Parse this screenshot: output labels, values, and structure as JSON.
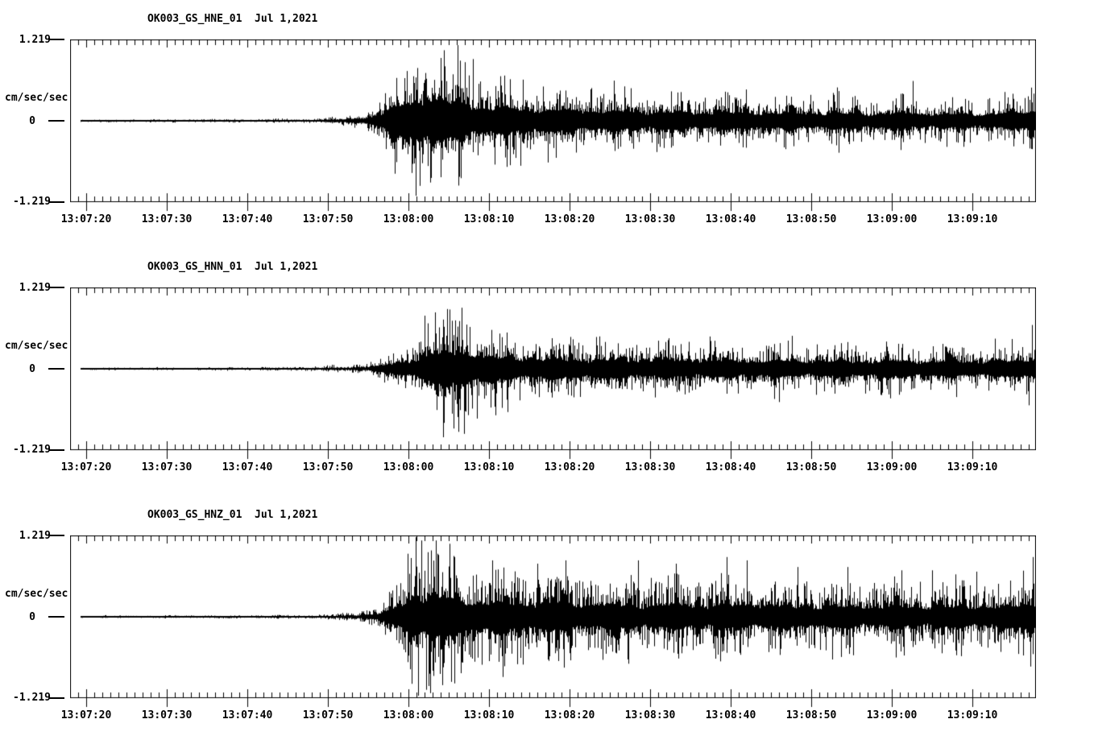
{
  "figure": {
    "background_color": "#ffffff",
    "foreground_color": "#000000"
  },
  "chart_data": {
    "type": "line",
    "subtype": "seismogram-min-max-trace",
    "date": "Jul 1,2021",
    "station": "OK003",
    "network": "GS",
    "x_axis": {
      "start_time": "13:07:18",
      "end_time": "13:09:18",
      "major_tick_interval_s": 10,
      "minor_tick_interval_s": 1,
      "first_major_tick_offset_s": 2,
      "tick_labels": [
        "13:07:20",
        "13:07:30",
        "13:07:40",
        "13:07:50",
        "13:08:00",
        "13:08:10",
        "13:08:20",
        "13:08:30",
        "13:08:40",
        "13:08:50",
        "13:09:00",
        "13:09:10"
      ]
    },
    "y_axis": {
      "label": "cm/sec/sec",
      "max": 1.219,
      "min": -1.219,
      "tick_labels": [
        "1.219",
        "0",
        "-1.219"
      ]
    },
    "panels": [
      {
        "title": "OK003_GS_HNE_01  Jul 1,2021",
        "channel": "HNE",
        "seed": 11,
        "spikiness": 0.18,
        "trace_start_s": 1.3,
        "envelope": [
          [
            1.3,
            0.018
          ],
          [
            20,
            0.022
          ],
          [
            28,
            0.028
          ],
          [
            32,
            0.04
          ],
          [
            34,
            0.06
          ],
          [
            36,
            0.1
          ],
          [
            37.5,
            0.18
          ],
          [
            39,
            0.35
          ],
          [
            40.5,
            0.6
          ],
          [
            42,
            0.85
          ],
          [
            43.5,
            0.95
          ],
          [
            45,
            0.9
          ],
          [
            47,
            0.82
          ],
          [
            49,
            0.72
          ],
          [
            51,
            0.62
          ],
          [
            53,
            0.56
          ],
          [
            56,
            0.52
          ],
          [
            60,
            0.47
          ],
          [
            65,
            0.43
          ],
          [
            70,
            0.4
          ],
          [
            78,
            0.37
          ],
          [
            86,
            0.35
          ],
          [
            95,
            0.33
          ],
          [
            105,
            0.31
          ],
          [
            112,
            0.3
          ],
          [
            117,
            0.33
          ],
          [
            119.9,
            0.45
          ]
        ],
        "spikes": [
          [
            41.8,
            0.75
          ],
          [
            42.9,
            -1.13
          ],
          [
            43.4,
            -0.98
          ],
          [
            44.1,
            0.72
          ],
          [
            44.7,
            -0.93
          ],
          [
            46.0,
            -0.85
          ],
          [
            47.5,
            0.7
          ],
          [
            50.0,
            0.93
          ],
          [
            56.2,
            0.62
          ],
          [
            104.6,
            0.6
          ],
          [
            119.3,
            0.5
          ]
        ]
      },
      {
        "title": "OK003_GS_HNN_01  Jul 1,2021",
        "channel": "HNN",
        "seed": 22,
        "spikiness": 0.18,
        "trace_start_s": 1.3,
        "envelope": [
          [
            1.3,
            0.016
          ],
          [
            20,
            0.02
          ],
          [
            30,
            0.03
          ],
          [
            34,
            0.045
          ],
          [
            37,
            0.08
          ],
          [
            39,
            0.15
          ],
          [
            41,
            0.28
          ],
          [
            43,
            0.45
          ],
          [
            45,
            0.6
          ],
          [
            46.5,
            0.7
          ],
          [
            48,
            0.75
          ],
          [
            49.5,
            0.68
          ],
          [
            51,
            0.58
          ],
          [
            53,
            0.5
          ],
          [
            56,
            0.45
          ],
          [
            60,
            0.42
          ],
          [
            66,
            0.4
          ],
          [
            72,
            0.38
          ],
          [
            80,
            0.36
          ],
          [
            90,
            0.35
          ],
          [
            100,
            0.34
          ],
          [
            110,
            0.33
          ],
          [
            117,
            0.33
          ],
          [
            119.9,
            0.5
          ]
        ],
        "spikes": [
          [
            44.0,
            0.8
          ],
          [
            45.3,
            0.85
          ],
          [
            46.8,
            0.9
          ],
          [
            48.6,
            0.92
          ],
          [
            47.6,
            -0.9
          ],
          [
            48.2,
            -0.95
          ],
          [
            48.9,
            -0.98
          ],
          [
            50.5,
            -0.75
          ],
          [
            52.8,
            -0.7
          ],
          [
            119.4,
            0.66
          ],
          [
            119.0,
            -0.55
          ]
        ]
      },
      {
        "title": "OK003_GS_HNZ_01  Jul 1,2021",
        "channel": "HNZ",
        "seed": 33,
        "spikiness": 0.3,
        "trace_start_s": 1.3,
        "envelope": [
          [
            1.3,
            0.015
          ],
          [
            20,
            0.018
          ],
          [
            30,
            0.025
          ],
          [
            34,
            0.04
          ],
          [
            36,
            0.07
          ],
          [
            38,
            0.13
          ],
          [
            40,
            0.3
          ],
          [
            41.5,
            0.6
          ],
          [
            42.5,
            0.85
          ],
          [
            43.5,
            0.95
          ],
          [
            45,
            0.88
          ],
          [
            47,
            0.78
          ],
          [
            49,
            0.68
          ],
          [
            52,
            0.62
          ],
          [
            56,
            0.58
          ],
          [
            62,
            0.54
          ],
          [
            70,
            0.52
          ],
          [
            80,
            0.5
          ],
          [
            90,
            0.47
          ],
          [
            100,
            0.45
          ],
          [
            110,
            0.44
          ],
          [
            117,
            0.46
          ],
          [
            119.9,
            0.65
          ]
        ],
        "spikes": [
          [
            41.9,
            0.95
          ],
          [
            42.4,
            -1.0
          ],
          [
            42.9,
            1.2
          ],
          [
            43.2,
            -1.19
          ],
          [
            43.6,
            1.15
          ],
          [
            44.2,
            -1.1
          ],
          [
            44.8,
            1.0
          ],
          [
            45.6,
            0.95
          ],
          [
            47.1,
            1.1
          ],
          [
            48.5,
            -0.85
          ],
          [
            52.4,
            0.85
          ],
          [
            58.0,
            0.8
          ],
          [
            61.5,
            0.85
          ],
          [
            70.5,
            0.85
          ],
          [
            75.2,
            0.8
          ],
          [
            81.5,
            0.9
          ],
          [
            84.0,
            0.85
          ],
          [
            90.3,
            0.75
          ],
          [
            96.5,
            0.75
          ],
          [
            103.2,
            0.7
          ],
          [
            107.0,
            0.7
          ],
          [
            112.5,
            0.68
          ],
          [
            119.5,
            0.9
          ],
          [
            119.2,
            -0.75
          ]
        ]
      }
    ]
  }
}
